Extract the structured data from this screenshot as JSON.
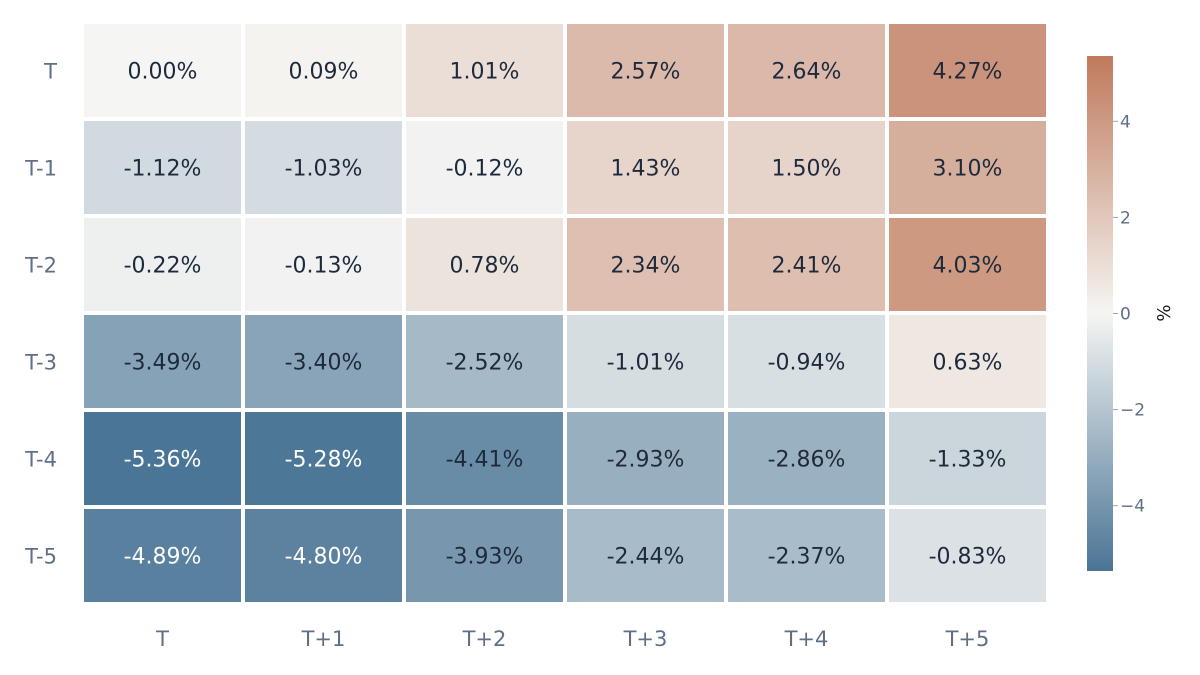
{
  "chart_data": {
    "type": "heatmap",
    "x_categories": [
      "T",
      "T+1",
      "T+2",
      "T+3",
      "T+4",
      "T+5"
    ],
    "y_categories": [
      "T",
      "T-1",
      "T-2",
      "T-3",
      "T-4",
      "T-5"
    ],
    "values": [
      [
        0.0,
        0.09,
        1.01,
        2.57,
        2.64,
        4.27
      ],
      [
        -1.12,
        -1.03,
        -0.12,
        1.43,
        1.5,
        3.1
      ],
      [
        -0.22,
        -0.13,
        0.78,
        2.34,
        2.41,
        4.03
      ],
      [
        -3.49,
        -3.4,
        -2.52,
        -1.01,
        -0.94,
        0.63
      ],
      [
        -5.36,
        -5.28,
        -4.41,
        -2.93,
        -2.86,
        -1.33
      ],
      [
        -4.89,
        -4.8,
        -3.93,
        -2.44,
        -2.37,
        -0.83
      ]
    ],
    "cell_labels": [
      [
        "0.00%",
        "0.09%",
        "1.01%",
        "2.57%",
        "2.64%",
        "4.27%"
      ],
      [
        "-1.12%",
        "-1.03%",
        "-0.12%",
        "1.43%",
        "1.50%",
        "3.10%"
      ],
      [
        "-0.22%",
        "-0.13%",
        "0.78%",
        "2.34%",
        "2.41%",
        "4.03%"
      ],
      [
        "-3.49%",
        "-3.40%",
        "-2.52%",
        "-1.01%",
        "-0.94%",
        "0.63%"
      ],
      [
        "-5.36%",
        "-5.28%",
        "-4.41%",
        "-2.93%",
        "-2.86%",
        "-1.33%"
      ],
      [
        "-4.89%",
        "-4.80%",
        "-3.93%",
        "-2.44%",
        "-2.37%",
        "-0.83%"
      ]
    ],
    "colorbar": {
      "title": "%",
      "range": [
        -5.36,
        5.36
      ],
      "ticks": [
        4,
        2,
        0,
        -2,
        -4
      ],
      "tick_labels": [
        "4",
        "2",
        "0",
        "−2",
        "−4"
      ]
    },
    "colors": {
      "negative": "#4a7596",
      "neutral": "#f5f5f3",
      "positive": "#c07a5c",
      "text_dark": "#1e2a3c",
      "text_light": "#ffffff"
    }
  }
}
